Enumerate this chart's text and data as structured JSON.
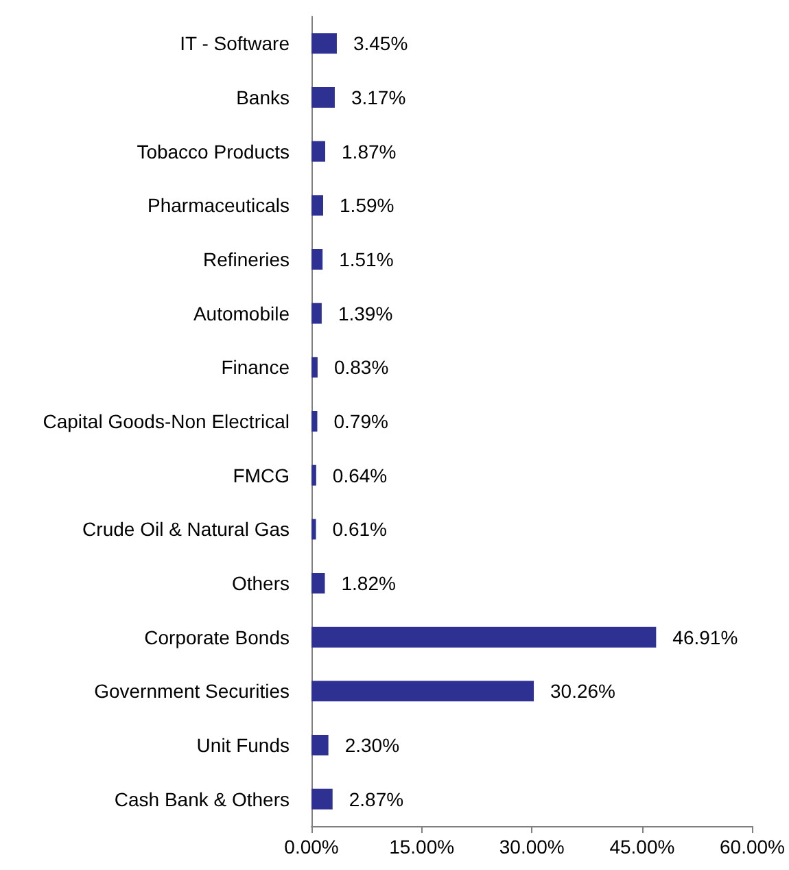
{
  "chart_data": {
    "type": "bar",
    "orientation": "horizontal",
    "categories": [
      "IT - Software",
      "Banks",
      "Tobacco Products",
      "Pharmaceuticals",
      "Refineries",
      "Automobile",
      "Finance",
      "Capital Goods-Non Electrical",
      "FMCG",
      "Crude Oil & Natural Gas",
      "Others",
      "Corporate Bonds",
      "Government Securities",
      "Unit Funds",
      "Cash Bank & Others"
    ],
    "values": [
      3.45,
      3.17,
      1.87,
      1.59,
      1.51,
      1.39,
      0.83,
      0.79,
      0.64,
      0.61,
      1.82,
      46.91,
      30.26,
      2.3,
      2.87
    ],
    "value_labels": [
      "3.45%",
      "3.17%",
      "1.87%",
      "1.59%",
      "1.51%",
      "1.39%",
      "0.83%",
      "0.79%",
      "0.64%",
      "0.61%",
      "1.82%",
      "46.91%",
      "30.26%",
      "2.30%",
      "2.87%"
    ],
    "color": "#2e3192",
    "xlim": [
      0,
      60
    ],
    "xticks": [
      {
        "value": 0,
        "label": "0.00%"
      },
      {
        "value": 15,
        "label": "15.00%"
      },
      {
        "value": 30,
        "label": "30.00%"
      },
      {
        "value": 45,
        "label": "45.00%"
      },
      {
        "value": 60,
        "label": "60.00%"
      }
    ],
    "grid": false
  }
}
